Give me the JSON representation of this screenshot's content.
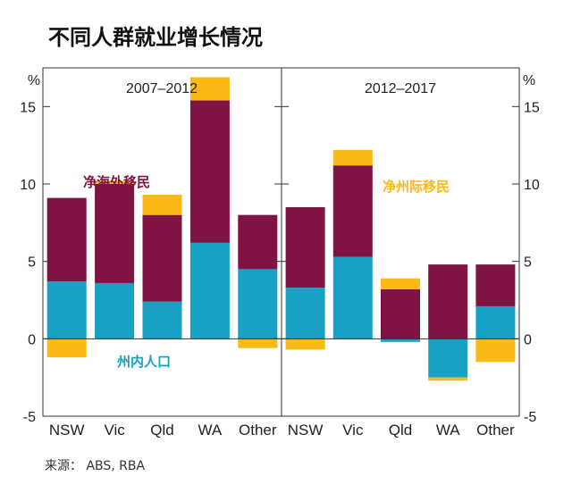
{
  "title": "不同人群就业增长情况",
  "source": "来源： ABS, RBA",
  "colors": {
    "state_population": "#17a1c4",
    "net_overseas_migration": "#7f1343",
    "net_interstate_migration": "#fbb916"
  },
  "chart_data": {
    "type": "bar",
    "stacked": true,
    "unit_label": "%",
    "ylim": [
      -5,
      17.5
    ],
    "yticks": [
      -5,
      0,
      5,
      10,
      15
    ],
    "grid": false,
    "legend": "inline annotations",
    "categories": [
      "NSW",
      "Vic",
      "Qld",
      "WA",
      "Other"
    ],
    "series": [
      {
        "key": "state_population",
        "name": "州内人口"
      },
      {
        "key": "net_overseas_migration",
        "name": "净海外移民"
      },
      {
        "key": "net_interstate_migration",
        "name": "净州际移民"
      }
    ],
    "panels": [
      {
        "title": "2007–2012",
        "values": {
          "state_population": [
            3.7,
            3.6,
            2.4,
            6.2,
            4.5
          ],
          "net_overseas_migration": [
            5.4,
            6.4,
            5.6,
            9.2,
            3.5
          ],
          "net_interstate_migration": [
            -1.2,
            0.2,
            1.3,
            1.5,
            -0.6
          ]
        }
      },
      {
        "title": "2012–2017",
        "values": {
          "state_population": [
            3.3,
            5.3,
            -0.2,
            -2.5,
            2.1
          ],
          "net_overseas_migration": [
            5.2,
            5.9,
            3.2,
            4.8,
            2.7
          ],
          "net_interstate_migration": [
            -0.7,
            1.0,
            0.7,
            -0.2,
            -1.5
          ]
        }
      }
    ]
  }
}
